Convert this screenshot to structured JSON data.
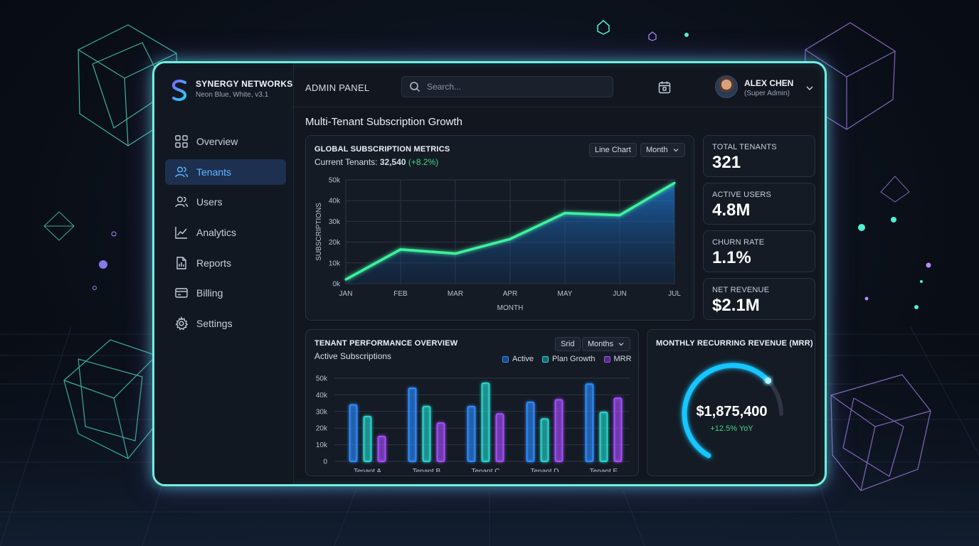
{
  "brand": {
    "name": "SYNERGY NETWORKS",
    "subtitle": "Neon Blue, White, v3.1"
  },
  "nav": [
    {
      "label": "Overview",
      "icon": "grid-icon",
      "active": false
    },
    {
      "label": "Tenants",
      "icon": "users-icon",
      "active": true
    },
    {
      "label": "Users",
      "icon": "user-group-icon",
      "active": false
    },
    {
      "label": "Analytics",
      "icon": "line-chart-icon",
      "active": false
    },
    {
      "label": "Reports",
      "icon": "document-icon",
      "active": false
    },
    {
      "label": "Billing",
      "icon": "credit-card-icon",
      "active": false
    },
    {
      "label": "Settings",
      "icon": "gear-icon",
      "active": false
    }
  ],
  "topbar": {
    "title": "ADMIN PANEL",
    "search_placeholder": "Search...",
    "user_name": "ALEX CHEN",
    "user_role": "(Super Admin)"
  },
  "page_title": "Multi-Tenant Subscription Growth",
  "global_metrics": {
    "title": "GLOBAL SUBSCRIPTION METRICS",
    "current_label": "Current Tenants:",
    "current_value": "32,540",
    "current_change": "(+8.2%)",
    "chart_type_button": "Line Chart",
    "period_select": "Month"
  },
  "stats": [
    {
      "label": "TOTAL TENANTS",
      "value": "321"
    },
    {
      "label": "ACTIVE USERS",
      "value": "4.8M"
    },
    {
      "label": "CHURN RATE",
      "value": "1.1%"
    },
    {
      "label": "NET REVENUE",
      "value": "$2.1M"
    }
  ],
  "performance": {
    "title": "TENANT PERFORMANCE OVERVIEW",
    "subtitle": "Active Subscriptions",
    "grid_button": "Srid",
    "period_select": "Months"
  },
  "mrr": {
    "title": "MONTHLY RECURRING REVENUE (MRR)",
    "value": "$1,875,400",
    "change": "+12.5% YoY",
    "progress": 0.82
  },
  "colors": {
    "line": "#3df2a0",
    "active": "#2f8cff",
    "plan_growth": "#27d8cf",
    "mrr": "#a64dff",
    "gauge": "#19c6ff",
    "positive": "#43d68a"
  },
  "chart_data": [
    {
      "type": "area",
      "title": "GLOBAL SUBSCRIPTION METRICS",
      "categories": [
        "JAN",
        "FEB",
        "MAR",
        "APR",
        "MAY",
        "JUN",
        "JUL"
      ],
      "values": [
        2000,
        16500,
        14500,
        21500,
        34000,
        33000,
        48500
      ],
      "xlabel": "MONTH",
      "ylabel": "SUBSCRIPTIONS",
      "ylim": [
        0,
        50000
      ],
      "yticks": [
        "0k",
        "10k",
        "20k",
        "30k",
        "40k",
        "50k"
      ],
      "grid": true
    },
    {
      "type": "bar",
      "title": "TENANT PERFORMANCE OVERVIEW",
      "categories": [
        "Tenant A",
        "Tenant B",
        "Tenant C",
        "Tenant D",
        "Tenant E"
      ],
      "series": [
        {
          "name": "Active",
          "values": [
            34000,
            44000,
            33000,
            35500,
            46500
          ]
        },
        {
          "name": "Plan Growth",
          "values": [
            27000,
            33000,
            47000,
            25500,
            29500
          ]
        },
        {
          "name": "MRR",
          "values": [
            15000,
            23000,
            28500,
            37000,
            38000
          ]
        }
      ],
      "ylim": [
        0,
        50000
      ],
      "yticks": [
        "0",
        "10k",
        "20k",
        "30k",
        "40k",
        "50k"
      ],
      "legend": "top-right",
      "grid": true
    }
  ]
}
